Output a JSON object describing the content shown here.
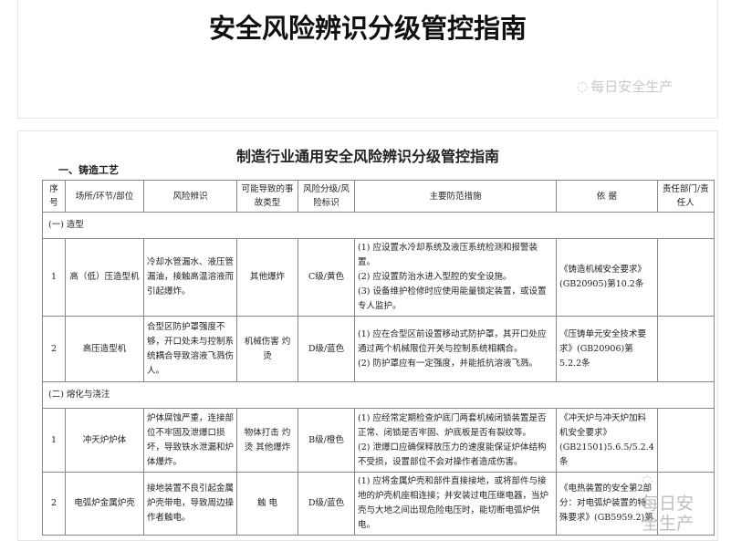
{
  "header_card": {
    "title": "安全风险辨识分级管控指南",
    "watermark": "每日安全生产",
    "watermark_icon": "wechat-icon"
  },
  "document": {
    "title": "制造行业通用安全风险辨识分级管控指南",
    "section": "一、铸造工艺",
    "columns": [
      "序号",
      "场所/环节/部位",
      "风险辨识",
      "可能导致的事故类型",
      "风险分级/风险标识",
      "主要防范措施",
      "依 据",
      "责任部门/责任人"
    ],
    "groups": [
      {
        "label": "(一) 造型",
        "rows": [
          {
            "no": "1",
            "place": "高（低）压造型机",
            "risk": "冷却水管漏水、液压管漏油，接触高温溶液而引起爆炸。",
            "accident": "其他爆炸",
            "level": "C级/黄色",
            "measures": [
              "(1) 应设置水冷却系统及液压系统检测和报警装置。",
              "(2) 应设置防治水进入型腔的安全设施。",
              "(3) 设备维护检修时应使用能量锁定装置，或设置专人监护。"
            ],
            "basis": "《铸造机械安全要求》(GB20905)第10.2条",
            "owner": ""
          },
          {
            "no": "2",
            "place": "高压造型机",
            "risk": "合型区防护罩强度不够，开口处未与控制系统耦合导致溶液飞溅伤人。",
            "accident": "机械伤害 灼 烫",
            "level": "D级/蓝色",
            "measures": [
              "(1) 应在合型区前设置移动式防护罩，其开口处应通过两个机械限位开关与控制系统相耦合。",
              "(2) 防护罩应有一定强度，并能抵抗溶液飞溅。"
            ],
            "basis": "《压铸单元安全技术要求》(GB20906)第5.2.2条",
            "owner": ""
          }
        ]
      },
      {
        "label": "(二) 熔化与浇注",
        "rows": [
          {
            "no": "1",
            "place": "冲天炉炉体",
            "risk": "炉体腐蚀严重，连接部位不牢固及泄爆口损坏，导致铁水泄漏和炉体爆炸。",
            "accident": "物体打击 灼 烫 其他爆炸",
            "level": "B级/橙色",
            "measures": [
              "(1) 应经常定期检查炉底门两套机械闭锁装置是否正常、闭锁是否牢固、炉底板是否有裂纹等。",
              "(2) 泄爆口应确保释放压力的速度能保证炉体结构不受损，设置部位不会对操作者造成伤害。"
            ],
            "basis": "《冲天炉与冲天炉加料机安全要求》(GB21501)5.6.5/5.2.4条",
            "owner": ""
          },
          {
            "no": "2",
            "place": "电弧炉金属炉壳",
            "risk": "接地装置不良引起金属炉壳带电，导致周边操作者触电。",
            "accident": "触 电",
            "level": "D级/蓝色",
            "measures": [
              "(1) 应将金属炉壳和部件直接接地，或将部件与接地的炉壳机座相连接；并安装过电压继电器，当炉壳与大地之间出现危险电压时，能切断电弧炉供电。"
            ],
            "basis": "《电热装置的安全第2部分：对电弧炉装置的特殊要求》(GB5959.2)第",
            "owner": ""
          }
        ]
      }
    ]
  }
}
